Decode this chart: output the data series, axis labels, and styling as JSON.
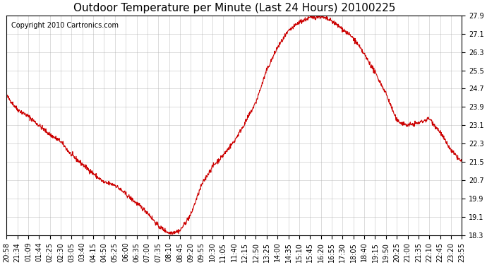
{
  "title": "Outdoor Temperature per Minute (Last 24 Hours) 20100225",
  "copyright_text": "Copyright 2010 Cartronics.com",
  "line_color": "#cc0000",
  "background_color": "#ffffff",
  "grid_color": "#aaaaaa",
  "ylabel_right": true,
  "ylim": [
    18.3,
    27.9
  ],
  "yticks": [
    18.3,
    19.1,
    19.9,
    20.7,
    21.5,
    22.3,
    23.1,
    23.9,
    24.7,
    25.5,
    26.3,
    27.1,
    27.9
  ],
  "xtick_labels": [
    "20:58",
    "21:34",
    "01:09",
    "01:44",
    "02:25",
    "02:30",
    "03:05",
    "03:40",
    "04:15",
    "04:50",
    "05:25",
    "06:00",
    "06:35",
    "07:00",
    "07:35",
    "08:10",
    "08:45",
    "09:20",
    "09:55",
    "10:30",
    "11:05",
    "11:40",
    "12:15",
    "12:50",
    "13:25",
    "14:00",
    "14:35",
    "15:10",
    "15:45",
    "16:20",
    "16:55",
    "17:30",
    "18:05",
    "18:40",
    "19:15",
    "19:50",
    "20:25",
    "21:00",
    "21:35",
    "22:10",
    "22:45",
    "23:20",
    "23:55"
  ],
  "keypoints_x": [
    0,
    5,
    10,
    15,
    20,
    25,
    30,
    35,
    40,
    45,
    50,
    55,
    60,
    65,
    70,
    75,
    80,
    85,
    90,
    95,
    100,
    105,
    110,
    115,
    120,
    125,
    130,
    135,
    140,
    145,
    150,
    155,
    160,
    165,
    170,
    175,
    180,
    185,
    190,
    195,
    200,
    205,
    210
  ],
  "keypoints_y": [
    24.4,
    23.8,
    23.5,
    23.1,
    22.7,
    22.4,
    21.8,
    21.4,
    21.0,
    20.6,
    20.5,
    20.1,
    19.7,
    19.3,
    18.7,
    18.4,
    18.5,
    19.2,
    20.5,
    21.3,
    21.8,
    22.4,
    23.2,
    24.1,
    25.5,
    26.5,
    27.2,
    27.6,
    27.8,
    27.85,
    27.65,
    27.3,
    26.9,
    26.2,
    25.4,
    24.5,
    23.3,
    23.1,
    23.2,
    23.4,
    22.8,
    22.0,
    21.5
  ],
  "title_fontsize": 11,
  "tick_fontsize": 7,
  "copyright_fontsize": 7
}
